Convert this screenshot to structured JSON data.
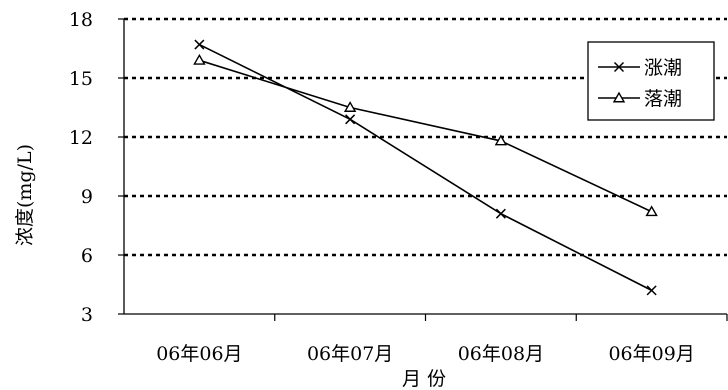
{
  "chart_data": {
    "type": "line",
    "categories": [
      "06年06月",
      "06年07月",
      "06年08月",
      "06年09月"
    ],
    "series": [
      {
        "name": "涨潮",
        "marker": "x",
        "values": [
          16.7,
          12.9,
          8.1,
          4.2
        ]
      },
      {
        "name": "落潮",
        "marker": "triangle",
        "values": [
          15.9,
          13.5,
          11.8,
          8.2
        ]
      }
    ],
    "xlabel": "月 份",
    "ylabel": "浓度(mg/L)",
    "ylim": [
      3,
      18
    ],
    "yticks": [
      "3",
      "6",
      "9",
      "12",
      "15",
      "18"
    ],
    "grid": "horizontal dotted",
    "legend": "top-right",
    "colors": {
      "line": "#000000",
      "grid": "#000000",
      "background": "#ffffff"
    }
  }
}
